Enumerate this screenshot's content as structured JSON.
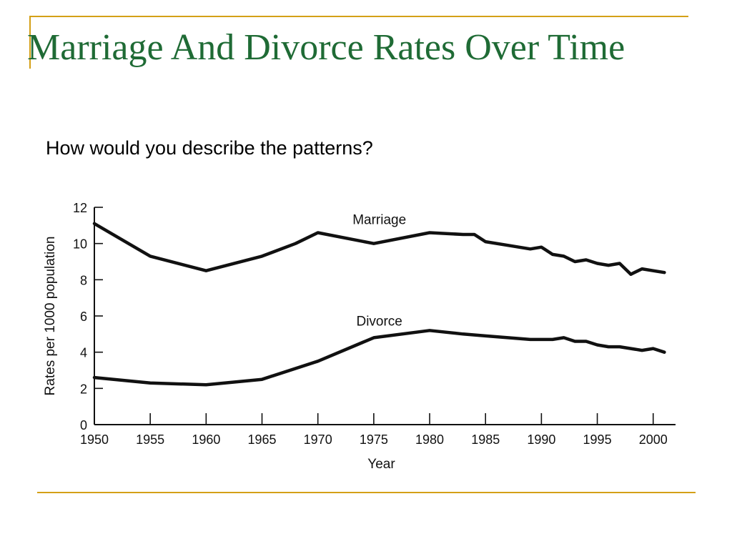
{
  "slide": {
    "title": "Marriage And Divorce Rates Over Time",
    "question": "How would you describe the patterns?"
  },
  "colors": {
    "title": "#1F6B35",
    "accent": "#D4A017",
    "line": "#111111"
  },
  "chart_data": {
    "type": "line",
    "title": "",
    "xlabel": "Year",
    "ylabel": "Rates per 1000 population",
    "xlim": [
      1950,
      2002
    ],
    "ylim": [
      0,
      12
    ],
    "xticks": [
      1950,
      1955,
      1960,
      1965,
      1970,
      1975,
      1980,
      1985,
      1990,
      1995,
      2000
    ],
    "yticks": [
      0,
      2,
      4,
      6,
      8,
      10,
      12
    ],
    "grid": false,
    "legend": "none",
    "series": [
      {
        "name": "Marriage",
        "x": [
          1950,
          1955,
          1960,
          1965,
          1968,
          1970,
          1975,
          1980,
          1983,
          1984,
          1985,
          1987,
          1989,
          1990,
          1991,
          1992,
          1993,
          1994,
          1995,
          1996,
          1997,
          1998,
          1999,
          2000,
          2001
        ],
        "y": [
          11.1,
          9.3,
          8.5,
          9.3,
          10.0,
          10.6,
          10.0,
          10.6,
          10.5,
          10.5,
          10.1,
          9.9,
          9.7,
          9.8,
          9.4,
          9.3,
          9.0,
          9.1,
          8.9,
          8.8,
          8.9,
          8.3,
          8.6,
          8.5,
          8.4
        ]
      },
      {
        "name": "Divorce",
        "x": [
          1950,
          1955,
          1960,
          1965,
          1970,
          1975,
          1980,
          1983,
          1985,
          1987,
          1989,
          1991,
          1992,
          1993,
          1994,
          1995,
          1996,
          1997,
          1998,
          1999,
          2000,
          2001
        ],
        "y": [
          2.6,
          2.3,
          2.2,
          2.5,
          3.5,
          4.8,
          5.2,
          5.0,
          4.9,
          4.8,
          4.7,
          4.7,
          4.8,
          4.6,
          4.6,
          4.4,
          4.3,
          4.3,
          4.2,
          4.1,
          4.2,
          4.0
        ]
      }
    ]
  }
}
